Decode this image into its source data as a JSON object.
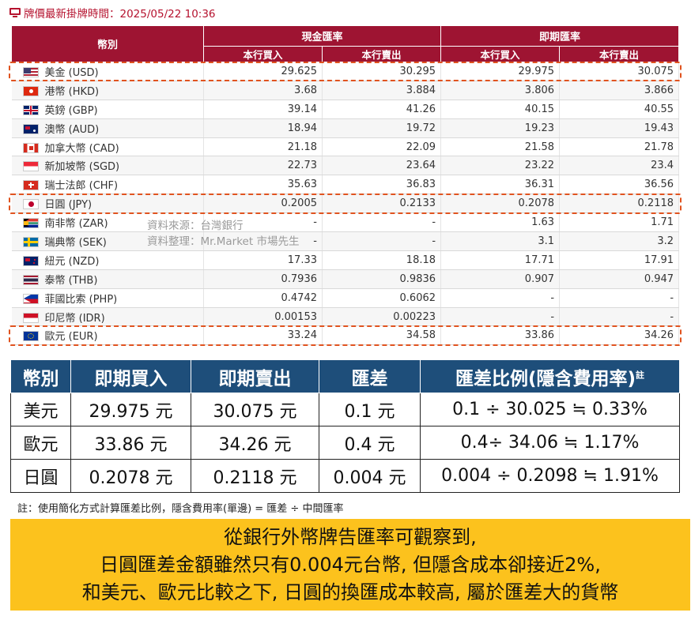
{
  "header": {
    "title": "牌價最新掛牌時間：2025/05/22 10:36",
    "icon": "monitor-icon"
  },
  "rate_table": {
    "head_currency": "幣別",
    "group_cash": "現金匯率",
    "group_spot": "即期匯率",
    "col_buy": "本行買入",
    "col_sell": "本行賣出",
    "rows": [
      {
        "name": "美金 (USD)",
        "flag": "us",
        "cash_buy": "29.625",
        "cash_sell": "30.295",
        "spot_buy": "29.975",
        "spot_sell": "30.075",
        "highlight": true
      },
      {
        "name": "港幣 (HKD)",
        "flag": "hk",
        "cash_buy": "3.68",
        "cash_sell": "3.884",
        "spot_buy": "3.806",
        "spot_sell": "3.866"
      },
      {
        "name": "英鎊 (GBP)",
        "flag": "gb",
        "cash_buy": "39.14",
        "cash_sell": "41.26",
        "spot_buy": "40.15",
        "spot_sell": "40.55"
      },
      {
        "name": "澳幣 (AUD)",
        "flag": "au",
        "cash_buy": "18.94",
        "cash_sell": "19.72",
        "spot_buy": "19.23",
        "spot_sell": "19.43"
      },
      {
        "name": "加拿大幣 (CAD)",
        "flag": "ca",
        "cash_buy": "21.18",
        "cash_sell": "22.09",
        "spot_buy": "21.58",
        "spot_sell": "21.78"
      },
      {
        "name": "新加坡幣 (SGD)",
        "flag": "sg",
        "cash_buy": "22.73",
        "cash_sell": "23.64",
        "spot_buy": "23.22",
        "spot_sell": "23.4"
      },
      {
        "name": "瑞士法郎 (CHF)",
        "flag": "ch",
        "cash_buy": "35.63",
        "cash_sell": "36.83",
        "spot_buy": "36.31",
        "spot_sell": "36.56"
      },
      {
        "name": "日圓 (JPY)",
        "flag": "jp",
        "cash_buy": "0.2005",
        "cash_sell": "0.2133",
        "spot_buy": "0.2078",
        "spot_sell": "0.2118",
        "highlight": true
      },
      {
        "name": "南非幣 (ZAR)",
        "flag": "za",
        "cash_buy": "-",
        "cash_sell": "-",
        "spot_buy": "1.63",
        "spot_sell": "1.71"
      },
      {
        "name": "瑞典幣 (SEK)",
        "flag": "se",
        "cash_buy": "-",
        "cash_sell": "-",
        "spot_buy": "3.1",
        "spot_sell": "3.2"
      },
      {
        "name": "紐元 (NZD)",
        "flag": "nz",
        "cash_buy": "17.33",
        "cash_sell": "18.18",
        "spot_buy": "17.71",
        "spot_sell": "17.91"
      },
      {
        "name": "泰幣 (THB)",
        "flag": "th",
        "cash_buy": "0.7936",
        "cash_sell": "0.9836",
        "spot_buy": "0.907",
        "spot_sell": "0.947"
      },
      {
        "name": "菲國比索 (PHP)",
        "flag": "ph",
        "cash_buy": "0.4742",
        "cash_sell": "0.6062",
        "spot_buy": "-",
        "spot_sell": "-"
      },
      {
        "name": "印尼幣 (IDR)",
        "flag": "id",
        "cash_buy": "0.00153",
        "cash_sell": "0.00223",
        "spot_buy": "-",
        "spot_sell": "-"
      },
      {
        "name": "歐元 (EUR)",
        "flag": "eu",
        "cash_buy": "33.24",
        "cash_sell": "34.58",
        "spot_buy": "33.86",
        "spot_sell": "34.26",
        "highlight": true
      }
    ]
  },
  "watermark": {
    "line1": "資料來源：台灣銀行",
    "line2": "資料整理：Mr.Market 市場先生"
  },
  "summary": {
    "headers": [
      "幣別",
      "即期買入",
      "即期賣出",
      "匯差",
      "匯差比例(隱含費用率)"
    ],
    "header_note": "註",
    "rows": [
      [
        "美元",
        "29.975 元",
        "30.075 元",
        "0.1 元",
        "0.1 ÷ 30.025 ≒ 0.33%"
      ],
      [
        "歐元",
        "33.86 元",
        "34.26 元",
        "0.4 元",
        "0.4÷ 34.06 ≒ 1.17%"
      ],
      [
        "日圓",
        "0.2078 元",
        "0.2118 元",
        "0.004 元",
        "0.004 ÷ 0.2098 ≒ 1.91%"
      ]
    ]
  },
  "footnote": "註：使用簡化方式計算匯差比例，隱含費用率(單邊) = 匯差 ÷ 中間匯率",
  "banner": {
    "lines": [
      "從銀行外幣牌告匯率可觀察到,",
      "日圓匯差金額雖然只有0.004元台幣, 但隱含成本卻接近2%,",
      "和美元、歐元比較之下, 日圓的換匯成本較高, 屬於匯差大的貨幣"
    ]
  },
  "colors": {
    "table_header": "#9e1432",
    "summary_header": "#1e4e7a",
    "highlight_border": "#e0531f",
    "banner": "#fcc21d"
  }
}
